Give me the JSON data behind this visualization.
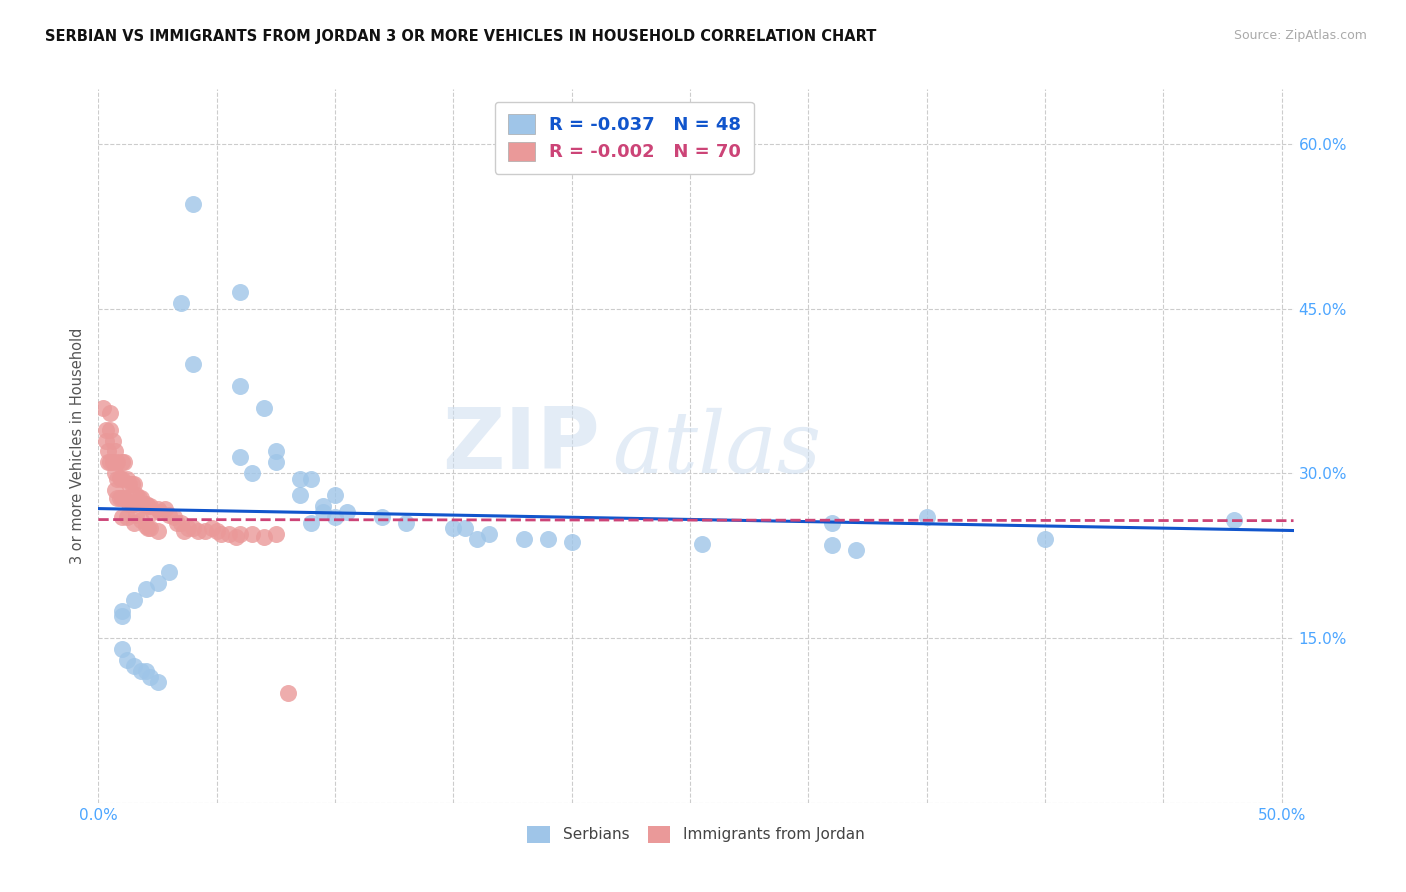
{
  "title": "SERBIAN VS IMMIGRANTS FROM JORDAN 3 OR MORE VEHICLES IN HOUSEHOLD CORRELATION CHART",
  "source": "Source: ZipAtlas.com",
  "ylabel": "3 or more Vehicles in Household",
  "xlim": [
    0.0,
    0.505
  ],
  "ylim": [
    0.0,
    0.65
  ],
  "xtick_positions": [
    0.0,
    0.05,
    0.1,
    0.15,
    0.2,
    0.25,
    0.3,
    0.35,
    0.4,
    0.45,
    0.5
  ],
  "ytick_positions": [
    0.0,
    0.15,
    0.3,
    0.45,
    0.6
  ],
  "ytick_labels": [
    "",
    "15.0%",
    "30.0%",
    "45.0%",
    "60.0%"
  ],
  "legend_label1": "Serbians",
  "legend_label2": "Immigrants from Jordan",
  "r1": "-0.037",
  "n1": "48",
  "r2": "-0.002",
  "n2": "70",
  "color_blue": "#9fc5e8",
  "color_pink": "#ea9999",
  "line_color_blue": "#1155cc",
  "line_color_pink": "#cc4477",
  "watermark_zip": "ZIP",
  "watermark_atlas": "atlas",
  "blue_x": [
    0.04,
    0.06,
    0.035,
    0.04,
    0.06,
    0.07,
    0.075,
    0.06,
    0.075,
    0.065,
    0.085,
    0.09,
    0.085,
    0.1,
    0.095,
    0.095,
    0.105,
    0.12,
    0.1,
    0.09,
    0.13,
    0.15,
    0.155,
    0.165,
    0.16,
    0.19,
    0.18,
    0.2,
    0.255,
    0.31,
    0.31,
    0.32,
    0.35,
    0.4,
    0.48,
    0.03,
    0.025,
    0.02,
    0.015,
    0.01,
    0.01,
    0.01,
    0.012,
    0.015,
    0.018,
    0.02,
    0.022,
    0.025
  ],
  "blue_y": [
    0.545,
    0.465,
    0.455,
    0.4,
    0.38,
    0.36,
    0.32,
    0.315,
    0.31,
    0.3,
    0.295,
    0.295,
    0.28,
    0.28,
    0.27,
    0.265,
    0.265,
    0.26,
    0.26,
    0.255,
    0.255,
    0.25,
    0.25,
    0.245,
    0.24,
    0.24,
    0.24,
    0.238,
    0.236,
    0.255,
    0.235,
    0.23,
    0.26,
    0.24,
    0.258,
    0.21,
    0.2,
    0.195,
    0.185,
    0.175,
    0.17,
    0.14,
    0.13,
    0.125,
    0.12,
    0.12,
    0.115,
    0.11
  ],
  "pink_x": [
    0.002,
    0.003,
    0.003,
    0.004,
    0.004,
    0.005,
    0.005,
    0.005,
    0.006,
    0.006,
    0.007,
    0.007,
    0.007,
    0.008,
    0.008,
    0.008,
    0.009,
    0.009,
    0.01,
    0.01,
    0.01,
    0.01,
    0.011,
    0.011,
    0.012,
    0.012,
    0.012,
    0.013,
    0.013,
    0.014,
    0.014,
    0.015,
    0.015,
    0.015,
    0.016,
    0.016,
    0.017,
    0.018,
    0.018,
    0.019,
    0.02,
    0.02,
    0.021,
    0.021,
    0.022,
    0.022,
    0.023,
    0.025,
    0.025,
    0.026,
    0.028,
    0.03,
    0.032,
    0.033,
    0.035,
    0.036,
    0.038,
    0.04,
    0.042,
    0.045,
    0.048,
    0.05,
    0.052,
    0.055,
    0.058,
    0.06,
    0.065,
    0.07,
    0.075,
    0.08
  ],
  "pink_y": [
    0.36,
    0.34,
    0.33,
    0.32,
    0.31,
    0.355,
    0.34,
    0.31,
    0.33,
    0.31,
    0.32,
    0.3,
    0.285,
    0.31,
    0.295,
    0.278,
    0.296,
    0.278,
    0.31,
    0.295,
    0.278,
    0.26,
    0.31,
    0.278,
    0.295,
    0.278,
    0.26,
    0.29,
    0.272,
    0.29,
    0.272,
    0.29,
    0.272,
    0.255,
    0.28,
    0.262,
    0.278,
    0.278,
    0.258,
    0.272,
    0.272,
    0.252,
    0.27,
    0.25,
    0.27,
    0.25,
    0.265,
    0.268,
    0.248,
    0.265,
    0.268,
    0.262,
    0.26,
    0.255,
    0.255,
    0.248,
    0.25,
    0.25,
    0.248,
    0.248,
    0.25,
    0.248,
    0.245,
    0.245,
    0.242,
    0.245,
    0.245,
    0.242,
    0.245,
    0.1
  ]
}
